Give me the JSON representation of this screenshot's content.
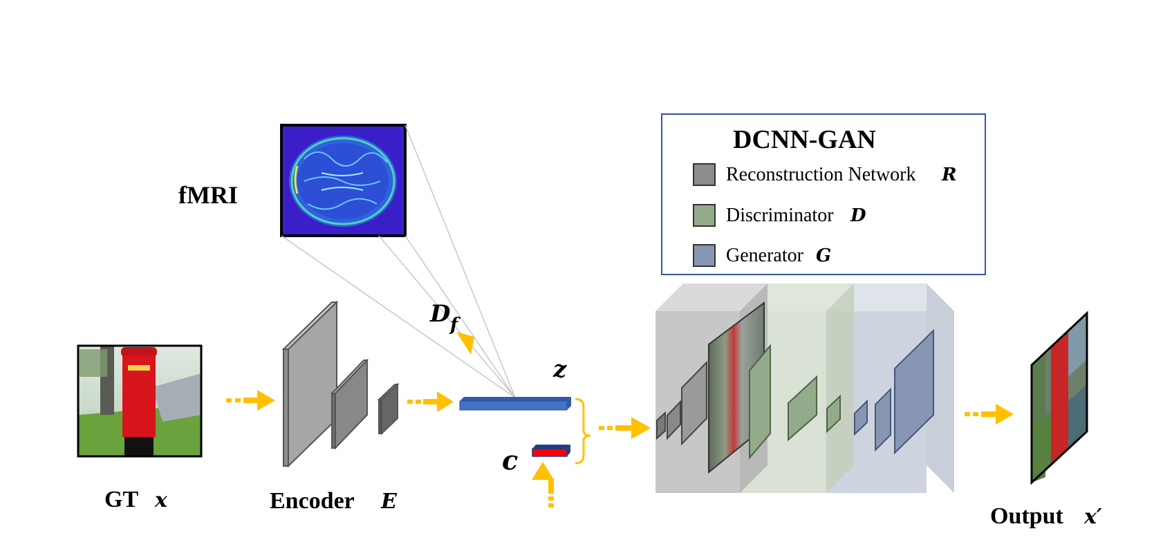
{
  "labels": {
    "fmri": "fMRI",
    "gt": "GT",
    "gt_var": "x",
    "encoder": "Encoder",
    "encoder_var": "E",
    "df_main": "D",
    "df_sub": "f",
    "z": "z",
    "c": "c",
    "output": "Output",
    "output_var": "x′"
  },
  "legend": {
    "title": "DCNN-GAN",
    "items": [
      {
        "text": "Reconstruction Network",
        "var": "R",
        "color": "#8c8c8c"
      },
      {
        "text": "Discriminator",
        "var": "D",
        "color": "#93ab8a"
      },
      {
        "text": "Generator",
        "var": "G",
        "color": "#8796b2"
      }
    ]
  },
  "colors": {
    "arrow": "#ffc000",
    "z_bar": "#4472c4",
    "c_bar": "#ff0000",
    "legend_border": "#2f5597",
    "fmri_bg": "#3a1fc8"
  }
}
